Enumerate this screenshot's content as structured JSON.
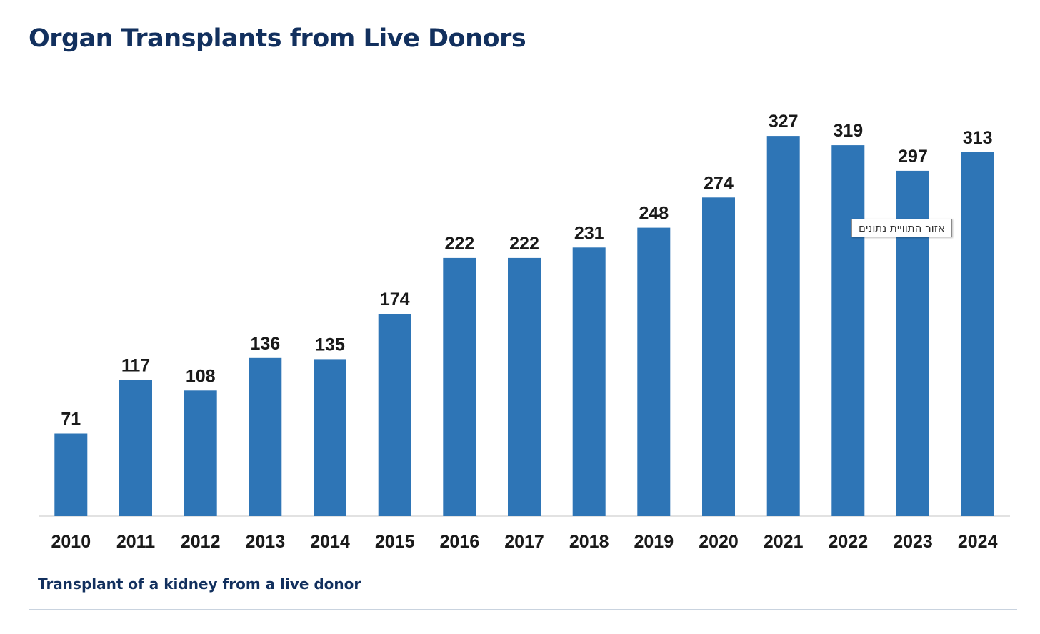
{
  "page": {
    "title": "Organ Transplants from Live Donors",
    "caption": "Transplant of a kidney from a live donor",
    "tooltip": "אזור התוויית נתונים"
  },
  "chart_data": {
    "type": "bar",
    "title": "",
    "xlabel": "",
    "ylabel": "",
    "categories": [
      "2010",
      "2011",
      "2012",
      "2013",
      "2014",
      "2015",
      "2016",
      "2017",
      "2018",
      "2019",
      "2020",
      "2021",
      "2022",
      "2023",
      "2024"
    ],
    "values": [
      71,
      117,
      108,
      136,
      135,
      174,
      222,
      222,
      231,
      248,
      274,
      327,
      319,
      297,
      313
    ],
    "data_labels": true,
    "ylim": [
      0,
      360
    ],
    "grid": false,
    "legend": "none",
    "bar_color": "#2e75b6",
    "axis_color": "#d9d9d9"
  }
}
